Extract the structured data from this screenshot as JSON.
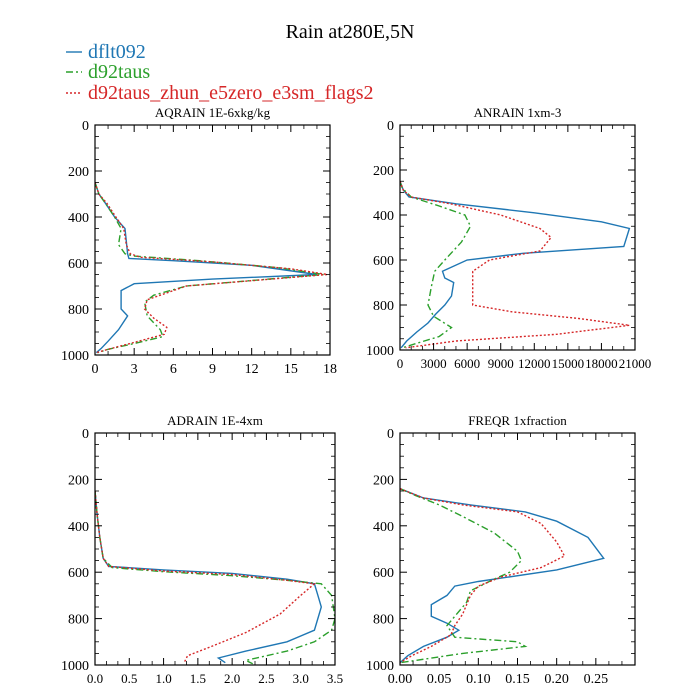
{
  "figure": {
    "title": "Rain at280E,5N"
  },
  "legend": [
    {
      "name": "dflt092",
      "color": "#1f77b4",
      "dash": "solid"
    },
    {
      "name": "d92taus",
      "color": "#2ca02c",
      "dash": "dashdot"
    },
    {
      "name": "d92taus_zhun_e5zero_e3sm_flags2",
      "color": "#d62728",
      "dash": "dot"
    }
  ],
  "chart_data": [
    {
      "type": "line",
      "title": "AQRAIN  1E-6xkg/kg",
      "xlim": [
        0,
        18
      ],
      "ylim": [
        0,
        1000
      ],
      "y_inverted": true,
      "xticks": [
        "0",
        "3",
        "6",
        "9",
        "12",
        "15",
        "18"
      ],
      "yticks": [
        "0",
        "200",
        "400",
        "600",
        "800",
        "1000"
      ],
      "series": [
        {
          "name": "dflt092",
          "points": [
            [
              0,
              250
            ],
            [
              0.3,
              300
            ],
            [
              0.8,
              340
            ],
            [
              1.5,
              400
            ],
            [
              2.3,
              450
            ],
            [
              2.5,
              560
            ],
            [
              2.6,
              580
            ],
            [
              6,
              590
            ],
            [
              12,
              610
            ],
            [
              17,
              650
            ],
            [
              9,
              670
            ],
            [
              3,
              690
            ],
            [
              2,
              720
            ],
            [
              2,
              800
            ],
            [
              2.5,
              830
            ],
            [
              1.8,
              890
            ],
            [
              1,
              940
            ],
            [
              0.5,
              970
            ],
            [
              0.1,
              990
            ]
          ]
        },
        {
          "name": "d92taus",
          "points": [
            [
              0,
              250
            ],
            [
              0.3,
              300
            ],
            [
              0.8,
              340
            ],
            [
              1.5,
              400
            ],
            [
              2,
              450
            ],
            [
              1.8,
              520
            ],
            [
              2.3,
              560
            ],
            [
              3,
              570
            ],
            [
              8,
              590
            ],
            [
              14,
              620
            ],
            [
              17.5,
              650
            ],
            [
              7,
              700
            ],
            [
              4.5,
              740
            ],
            [
              3.8,
              770
            ],
            [
              4,
              830
            ],
            [
              5,
              890
            ],
            [
              5.2,
              920
            ],
            [
              3,
              950
            ],
            [
              1,
              975
            ],
            [
              0.2,
              990
            ]
          ]
        },
        {
          "name": "d92taus_zhun_e5zero_e3sm_flags2",
          "points": [
            [
              0,
              250
            ],
            [
              0.3,
              300
            ],
            [
              0.9,
              340
            ],
            [
              1.6,
              400
            ],
            [
              2.2,
              450
            ],
            [
              2.4,
              520
            ],
            [
              2.7,
              560
            ],
            [
              3.5,
              575
            ],
            [
              9,
              595
            ],
            [
              15,
              625
            ],
            [
              17.8,
              650
            ],
            [
              7,
              700
            ],
            [
              4,
              760
            ],
            [
              3.8,
              800
            ],
            [
              4.5,
              840
            ],
            [
              5.5,
              880
            ],
            [
              5.3,
              910
            ],
            [
              3,
              945
            ],
            [
              1,
              975
            ],
            [
              0.1,
              990
            ]
          ]
        }
      ]
    },
    {
      "type": "line",
      "title": "ANRAIN  1xm-3",
      "xlim": [
        0,
        21000
      ],
      "ylim": [
        0,
        1000
      ],
      "y_inverted": true,
      "xticks": [
        "0",
        "3000",
        "6000",
        "9000",
        "12000",
        "15000",
        "18000",
        "21000"
      ],
      "yticks": [
        "0",
        "200",
        "400",
        "600",
        "800",
        "1000"
      ],
      "series": [
        {
          "name": "dflt092",
          "points": [
            [
              0,
              250
            ],
            [
              300,
              290
            ],
            [
              800,
              320
            ],
            [
              5000,
              350
            ],
            [
              12000,
              390
            ],
            [
              18000,
              430
            ],
            [
              20500,
              460
            ],
            [
              20000,
              540
            ],
            [
              11000,
              570
            ],
            [
              6000,
              600
            ],
            [
              3800,
              650
            ],
            [
              4000,
              680
            ],
            [
              4800,
              700
            ],
            [
              4600,
              760
            ],
            [
              4000,
              800
            ],
            [
              3200,
              840
            ],
            [
              2500,
              880
            ],
            [
              1500,
              920
            ],
            [
              600,
              960
            ],
            [
              100,
              990
            ]
          ]
        },
        {
          "name": "d92taus",
          "points": [
            [
              0,
              250
            ],
            [
              200,
              280
            ],
            [
              1000,
              320
            ],
            [
              3500,
              360
            ],
            [
              5800,
              400
            ],
            [
              6300,
              450
            ],
            [
              5500,
              520
            ],
            [
              4000,
              600
            ],
            [
              3100,
              650
            ],
            [
              2800,
              720
            ],
            [
              2500,
              800
            ],
            [
              3000,
              850
            ],
            [
              4600,
              900
            ],
            [
              3500,
              940
            ],
            [
              1500,
              970
            ],
            [
              200,
              990
            ]
          ]
        },
        {
          "name": "d92taus_zhun_e5zero_e3sm_flags2",
          "points": [
            [
              0,
              250
            ],
            [
              300,
              290
            ],
            [
              1000,
              320
            ],
            [
              4500,
              350
            ],
            [
              9000,
              400
            ],
            [
              12500,
              460
            ],
            [
              13500,
              500
            ],
            [
              12500,
              560
            ],
            [
              8000,
              600
            ],
            [
              6500,
              650
            ],
            [
              6500,
              700
            ],
            [
              6500,
              800
            ],
            [
              10000,
              830
            ],
            [
              16000,
              860
            ],
            [
              20500,
              890
            ],
            [
              14000,
              930
            ],
            [
              5000,
              960
            ],
            [
              500,
              990
            ]
          ]
        }
      ]
    },
    {
      "type": "line",
      "title": "ADRAIN  1E-4xm",
      "xlim": [
        0,
        3.5
      ],
      "ylim": [
        0,
        1000
      ],
      "y_inverted": true,
      "xticks": [
        "0.0",
        "0.5",
        "1.0",
        "1.5",
        "2.0",
        "2.5",
        "3.0",
        "3.5"
      ],
      "yticks": [
        "0",
        "200",
        "400",
        "600",
        "800",
        "1000"
      ],
      "series": [
        {
          "name": "dflt092",
          "points": [
            [
              0,
              250
            ],
            [
              0.03,
              350
            ],
            [
              0.07,
              450
            ],
            [
              0.12,
              540
            ],
            [
              0.2,
              575
            ],
            [
              1,
              590
            ],
            [
              2,
              605
            ],
            [
              2.8,
              630
            ],
            [
              3.2,
              650
            ],
            [
              3.25,
              700
            ],
            [
              3.3,
              750
            ],
            [
              3.2,
              850
            ],
            [
              2.8,
              900
            ],
            [
              2.2,
              940
            ],
            [
              1.8,
              970
            ],
            [
              1.9,
              990
            ]
          ]
        },
        {
          "name": "d92taus",
          "points": [
            [
              0,
              250
            ],
            [
              0.03,
              350
            ],
            [
              0.07,
              450
            ],
            [
              0.12,
              540
            ],
            [
              0.25,
              580
            ],
            [
              1,
              598
            ],
            [
              2,
              615
            ],
            [
              2.8,
              635
            ],
            [
              3.3,
              650
            ],
            [
              3.45,
              700
            ],
            [
              3.5,
              800
            ],
            [
              3.45,
              850
            ],
            [
              3.2,
              900
            ],
            [
              2.8,
              940
            ],
            [
              2.2,
              980
            ],
            [
              2.3,
              995
            ]
          ]
        },
        {
          "name": "d92taus_zhun_e5zero_e3sm_flags2",
          "points": [
            [
              0,
              250
            ],
            [
              0.03,
              350
            ],
            [
              0.07,
              450
            ],
            [
              0.12,
              540
            ],
            [
              0.2,
              575
            ],
            [
              1,
              595
            ],
            [
              2,
              610
            ],
            [
              2.8,
              635
            ],
            [
              3.2,
              650
            ],
            [
              3,
              700
            ],
            [
              2.7,
              780
            ],
            [
              2.2,
              860
            ],
            [
              1.7,
              920
            ],
            [
              1.35,
              960
            ],
            [
              1.3,
              990
            ]
          ]
        }
      ]
    },
    {
      "type": "line",
      "title": "FREQR  1xfraction",
      "xlim": [
        0,
        0.3
      ],
      "ylim": [
        0,
        1000
      ],
      "y_inverted": true,
      "xticks": [
        "0.00",
        "0.05",
        "0.10",
        "0.15",
        "0.20",
        "0.25"
      ],
      "yticks": [
        "0",
        "200",
        "400",
        "600",
        "800",
        "1000"
      ],
      "series": [
        {
          "name": "dflt092",
          "points": [
            [
              0,
              240
            ],
            [
              0.03,
              280
            ],
            [
              0.09,
              310
            ],
            [
              0.16,
              340
            ],
            [
              0.2,
              380
            ],
            [
              0.24,
              450
            ],
            [
              0.26,
              540
            ],
            [
              0.2,
              590
            ],
            [
              0.1,
              640
            ],
            [
              0.07,
              660
            ],
            [
              0.06,
              700
            ],
            [
              0.04,
              740
            ],
            [
              0.04,
              790
            ],
            [
              0.06,
              820
            ],
            [
              0.075,
              850
            ],
            [
              0.06,
              880
            ],
            [
              0.03,
              920
            ],
            [
              0.01,
              960
            ],
            [
              0,
              990
            ]
          ]
        },
        {
          "name": "d92taus",
          "points": [
            [
              0,
              240
            ],
            [
              0.02,
              270
            ],
            [
              0.05,
              310
            ],
            [
              0.08,
              360
            ],
            [
              0.12,
              430
            ],
            [
              0.15,
              510
            ],
            [
              0.155,
              550
            ],
            [
              0.14,
              600
            ],
            [
              0.12,
              630
            ],
            [
              0.09,
              680
            ],
            [
              0.085,
              730
            ],
            [
              0.07,
              790
            ],
            [
              0.06,
              830
            ],
            [
              0.07,
              880
            ],
            [
              0.15,
              900
            ],
            [
              0.16,
              920
            ],
            [
              0.08,
              950
            ],
            [
              0.02,
              980
            ],
            [
              0,
              990
            ]
          ]
        },
        {
          "name": "d92taus_zhun_e5zero_e3sm_flags2",
          "points": [
            [
              0,
              240
            ],
            [
              0.03,
              280
            ],
            [
              0.08,
              310
            ],
            [
              0.15,
              340
            ],
            [
              0.18,
              390
            ],
            [
              0.2,
              470
            ],
            [
              0.21,
              530
            ],
            [
              0.18,
              580
            ],
            [
              0.13,
              620
            ],
            [
              0.1,
              660
            ],
            [
              0.09,
              700
            ],
            [
              0.085,
              740
            ],
            [
              0.08,
              780
            ],
            [
              0.07,
              830
            ],
            [
              0.065,
              870
            ],
            [
              0.04,
              920
            ],
            [
              0.015,
              960
            ],
            [
              0,
              990
            ]
          ]
        }
      ]
    }
  ]
}
